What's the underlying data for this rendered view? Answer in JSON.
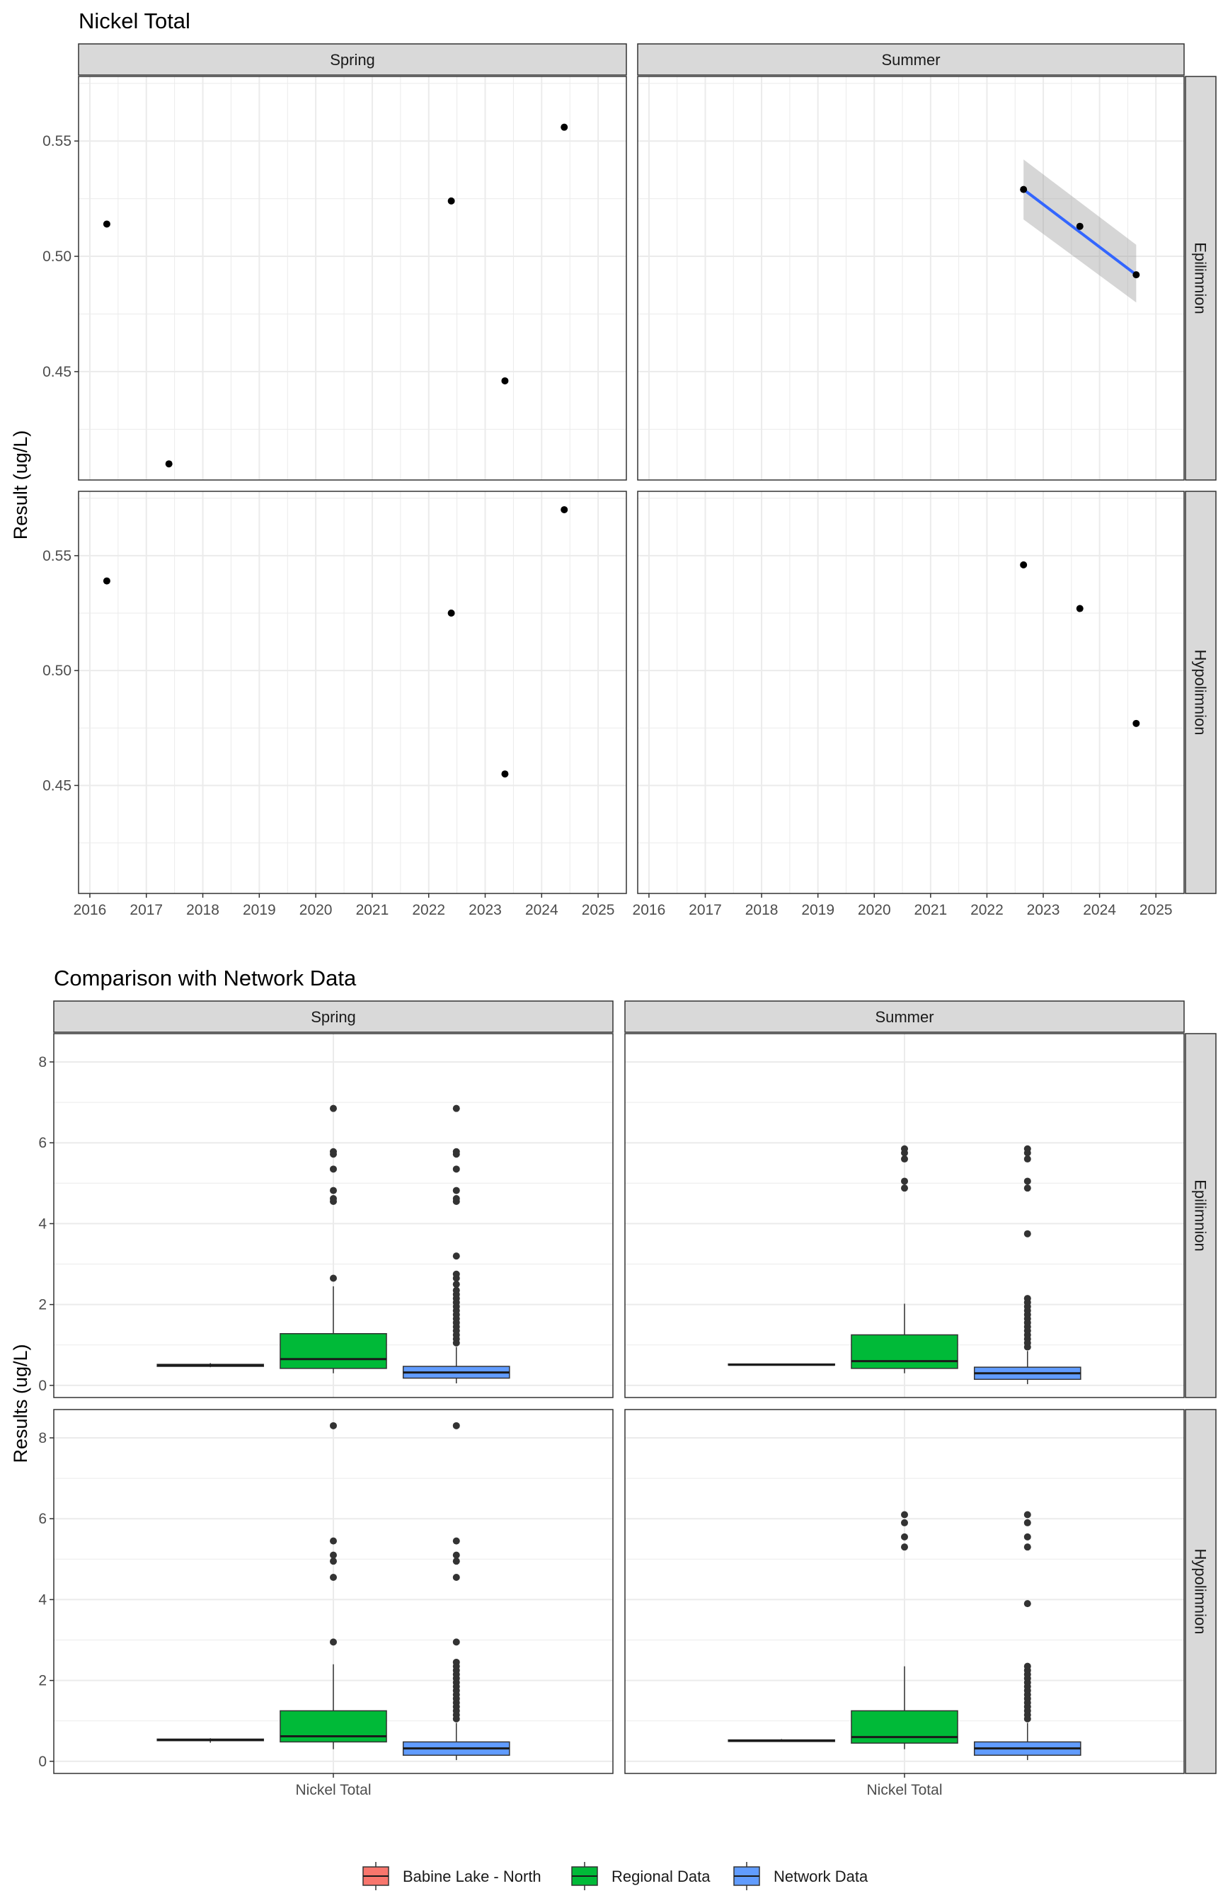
{
  "colors": {
    "point": "#000000",
    "outlier": "#333333",
    "trend_line": "#3366FF",
    "ribbon": "#999999",
    "strip_fill": "#D9D9D9",
    "grid": "#EBEBEB",
    "babine": "#F8766D",
    "regional": "#00BA38",
    "network": "#619CFF"
  },
  "chart_data": [
    {
      "type": "scatter",
      "title": "Nickel Total",
      "ylabel": "Result (ug/L)",
      "xlabel": "",
      "xlim": [
        2015.8,
        2025.5
      ],
      "ylim": [
        0.403,
        0.578
      ],
      "xticks": [
        2016,
        2017,
        2018,
        2019,
        2020,
        2021,
        2022,
        2023,
        2024,
        2025
      ],
      "xtick_labels": [
        "2016",
        "2017",
        "2018",
        "2019",
        "2020",
        "2021",
        "2022",
        "2023",
        "2024",
        "2025"
      ],
      "yticks": [
        0.45,
        0.5,
        0.55
      ],
      "ytick_labels": [
        "0.45",
        "0.50",
        "0.55"
      ],
      "grid": true,
      "col_facets": [
        "Spring",
        "Summer"
      ],
      "row_facets": [
        "Epilimnion",
        "Hypolimnion"
      ],
      "panels": [
        {
          "col": 0,
          "row": 0,
          "x": [
            2016.3,
            2017.4,
            2022.4,
            2023.35,
            2024.4
          ],
          "y": [
            0.514,
            0.41,
            0.524,
            0.446,
            0.556
          ]
        },
        {
          "col": 1,
          "row": 0,
          "x": [
            2022.65,
            2023.65,
            2024.65
          ],
          "y": [
            0.529,
            0.513,
            0.492
          ],
          "trend": {
            "x": [
              2022.65,
              2024.65
            ],
            "y": [
              0.529,
              0.492
            ],
            "ribbon_upper": [
              0.542,
              0.505
            ],
            "ribbon_lower": [
              0.516,
              0.48
            ]
          }
        },
        {
          "col": 0,
          "row": 1,
          "x": [
            2016.3,
            2022.4,
            2023.35,
            2024.4
          ],
          "y": [
            0.539,
            0.525,
            0.455,
            0.57
          ]
        },
        {
          "col": 1,
          "row": 1,
          "x": [
            2022.65,
            2023.65,
            2024.65
          ],
          "y": [
            0.546,
            0.527,
            0.477
          ]
        }
      ]
    },
    {
      "type": "boxplot",
      "title": "Comparison with Network Data",
      "ylabel": "Results (ug/L)",
      "xlabel": "",
      "categories": [
        "Nickel Total"
      ],
      "ylim": [
        -0.3,
        8.7
      ],
      "yticks": [
        0,
        2,
        4,
        6,
        8
      ],
      "ytick_labels": [
        "0",
        "2",
        "4",
        "6",
        "8"
      ],
      "grid": true,
      "col_facets": [
        "Spring",
        "Summer"
      ],
      "row_facets": [
        "Epilimnion",
        "Hypolimnion"
      ],
      "legend": {
        "position": "bottom",
        "entries": [
          "Babine Lake - North",
          "Regional Data",
          "Network Data"
        ]
      },
      "panels": [
        {
          "col": 0,
          "row": 0,
          "boxes": [
            {
              "group": "Babine Lake - North",
              "q1": 0.47,
              "median": 0.5,
              "q3": 0.52,
              "whisker_low": 0.45,
              "whisker_high": 0.55,
              "outliers": []
            },
            {
              "group": "Regional Data",
              "q1": 0.42,
              "median": 0.65,
              "q3": 1.28,
              "whisker_low": 0.3,
              "whisker_high": 2.45,
              "outliers": [
                2.65,
                4.55,
                4.62,
                4.82,
                5.35,
                5.72,
                5.78,
                6.85
              ]
            },
            {
              "group": "Network Data",
              "q1": 0.18,
              "median": 0.32,
              "q3": 0.47,
              "whisker_low": 0.05,
              "whisker_high": 0.95,
              "outliers": [
                1.05,
                1.15,
                1.25,
                1.35,
                1.45,
                1.55,
                1.65,
                1.75,
                1.85,
                1.95,
                2.05,
                2.15,
                2.25,
                2.35,
                2.5,
                2.65,
                2.75,
                3.2,
                4.55,
                4.62,
                4.82,
                5.35,
                5.72,
                5.78,
                6.85
              ]
            }
          ]
        },
        {
          "col": 1,
          "row": 0,
          "boxes": [
            {
              "group": "Babine Lake - North",
              "q1": 0.5,
              "median": 0.51,
              "q3": 0.53,
              "whisker_low": 0.49,
              "whisker_high": 0.53,
              "outliers": []
            },
            {
              "group": "Regional Data",
              "q1": 0.42,
              "median": 0.6,
              "q3": 1.25,
              "whisker_low": 0.3,
              "whisker_high": 2.02,
              "outliers": [
                4.88,
                5.05,
                5.6,
                5.75,
                5.85
              ]
            },
            {
              "group": "Network Data",
              "q1": 0.15,
              "median": 0.3,
              "q3": 0.45,
              "whisker_low": 0.03,
              "whisker_high": 0.85,
              "outliers": [
                0.95,
                1.05,
                1.15,
                1.25,
                1.35,
                1.45,
                1.55,
                1.65,
                1.75,
                1.85,
                1.95,
                2.05,
                2.15,
                3.75,
                4.88,
                5.05,
                5.6,
                5.75,
                5.85
              ]
            }
          ]
        },
        {
          "col": 0,
          "row": 1,
          "boxes": [
            {
              "group": "Babine Lake - North",
              "q1": 0.51,
              "median": 0.53,
              "q3": 0.55,
              "whisker_low": 0.46,
              "whisker_high": 0.57,
              "outliers": []
            },
            {
              "group": "Regional Data",
              "q1": 0.48,
              "median": 0.62,
              "q3": 1.25,
              "whisker_low": 0.3,
              "whisker_high": 2.4,
              "outliers": [
                2.95,
                4.55,
                4.95,
                5.1,
                5.45,
                8.3
              ]
            },
            {
              "group": "Network Data",
              "q1": 0.15,
              "median": 0.32,
              "q3": 0.48,
              "whisker_low": 0.03,
              "whisker_high": 0.95,
              "outliers": [
                1.05,
                1.15,
                1.25,
                1.35,
                1.45,
                1.55,
                1.65,
                1.75,
                1.85,
                1.95,
                2.05,
                2.15,
                2.25,
                2.35,
                2.45,
                2.95,
                4.55,
                4.95,
                5.1,
                5.45,
                8.3
              ]
            }
          ]
        },
        {
          "col": 1,
          "row": 1,
          "boxes": [
            {
              "group": "Babine Lake - North",
              "q1": 0.49,
              "median": 0.51,
              "q3": 0.53,
              "whisker_low": 0.48,
              "whisker_high": 0.55,
              "outliers": []
            },
            {
              "group": "Regional Data",
              "q1": 0.45,
              "median": 0.6,
              "q3": 1.25,
              "whisker_low": 0.3,
              "whisker_high": 2.35,
              "outliers": [
                5.3,
                5.55,
                5.9,
                6.1
              ]
            },
            {
              "group": "Network Data",
              "q1": 0.15,
              "median": 0.32,
              "q3": 0.48,
              "whisker_low": 0.03,
              "whisker_high": 0.95,
              "outliers": [
                1.05,
                1.15,
                1.25,
                1.35,
                1.45,
                1.55,
                1.65,
                1.75,
                1.85,
                1.95,
                2.05,
                2.15,
                2.25,
                2.35,
                3.9,
                5.3,
                5.55,
                5.9,
                6.1
              ]
            }
          ]
        }
      ]
    }
  ]
}
